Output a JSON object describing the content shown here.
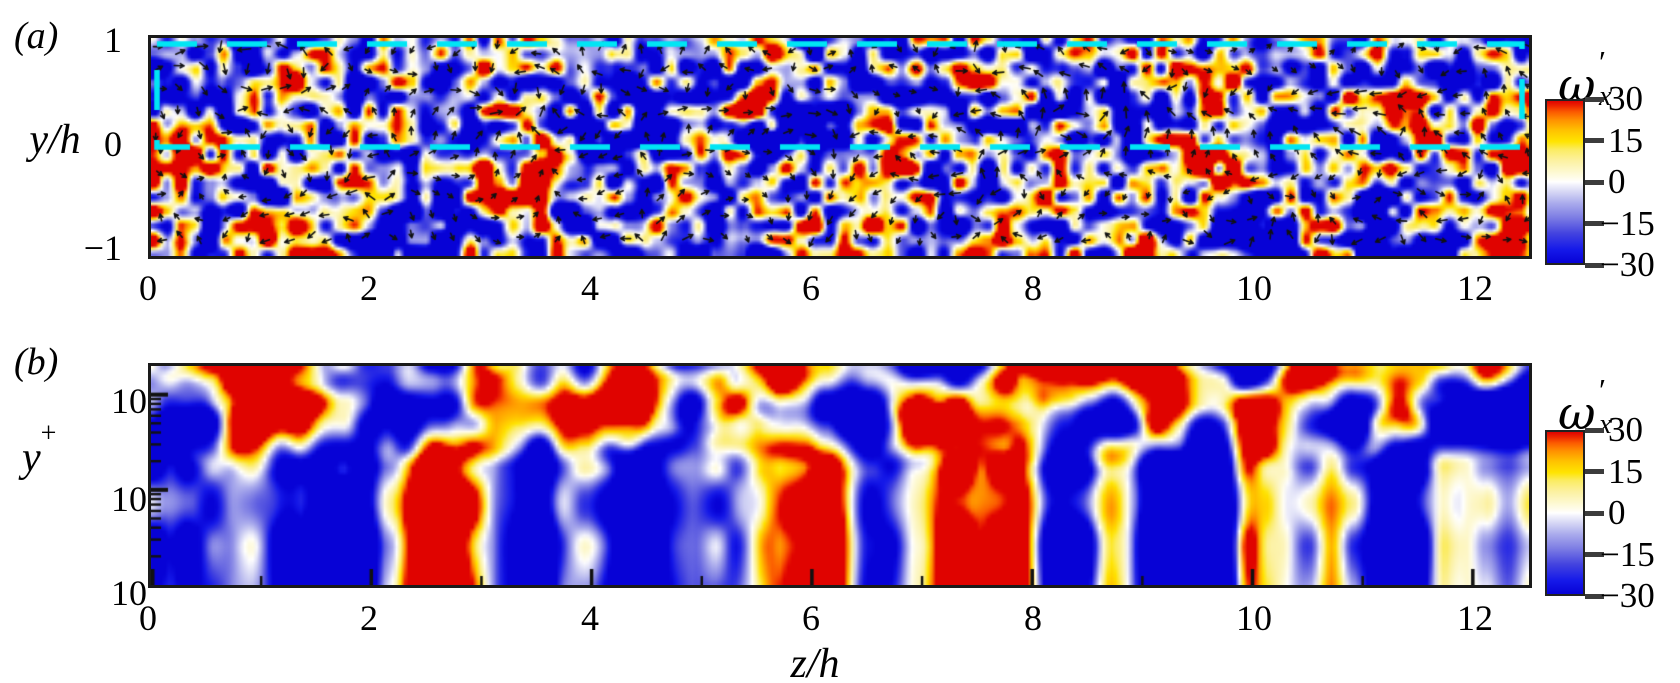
{
  "panels": {
    "a": {
      "tag": "(a)",
      "ylabel": "y/h",
      "y_ticks": [
        "1",
        "0",
        "−1"
      ],
      "x_ticks": [
        "0",
        "2",
        "4",
        "6",
        "8",
        "10",
        "12"
      ]
    },
    "b": {
      "tag": "(b)",
      "ylabel_base": "y",
      "ylabel_sup": "+",
      "y_ticks": [
        {
          "base": "10",
          "exp": "2"
        },
        {
          "base": "10",
          "exp": "1"
        },
        {
          "base": "10",
          "exp": "0"
        }
      ],
      "x_ticks": [
        "0",
        "2",
        "4",
        "6",
        "8",
        "10",
        "12"
      ]
    }
  },
  "xlabel": "z/h",
  "colorbar": {
    "omega": "ω",
    "prime": "′",
    "sub": "x",
    "ticks": [
      "30",
      "15",
      "0",
      "−15",
      "−30"
    ]
  },
  "colors": {
    "cyan_dash": "#00e6f4",
    "arrow": "#111111",
    "frame": "#1a1a1a",
    "colormap": [
      [
        -30,
        "#0702d6"
      ],
      [
        -25,
        "#1519e9"
      ],
      [
        -19,
        "#4343df"
      ],
      [
        -13,
        "#7e7ee4"
      ],
      [
        -8,
        "#a9aaec"
      ],
      [
        -4,
        "#d2d3f4"
      ],
      [
        -1,
        "#f2f2fc"
      ],
      [
        0,
        "#ffffff"
      ],
      [
        1,
        "#fffdf0"
      ],
      [
        4,
        "#fdf8cd"
      ],
      [
        8,
        "#fcf1a0"
      ],
      [
        12,
        "#fbec62"
      ],
      [
        15,
        "#ffe400"
      ],
      [
        19,
        "#ffc300"
      ],
      [
        23,
        "#ff9000"
      ],
      [
        26,
        "#fb5a00"
      ],
      [
        28,
        "#ef2800"
      ],
      [
        30,
        "#e00300"
      ]
    ]
  },
  "chart_data": [
    {
      "type": "heatmap",
      "panel": "(a)",
      "field": "instantaneous streamwise vorticity fluctuation ω′x in a cross-stream z–y plane, overlaid with in-plane velocity vector arrows",
      "xlabel": "z/h",
      "ylabel": "y/h",
      "x_range": [
        0,
        12.5
      ],
      "x_ticks": [
        0,
        2,
        4,
        6,
        8,
        10,
        12
      ],
      "y_range": [
        -1,
        1
      ],
      "y_ticks": [
        1,
        0,
        -1
      ],
      "colorbar": {
        "label": "ω′x",
        "ticks": [
          30,
          15,
          0,
          -15,
          -30
        ],
        "range": [
          -30,
          30
        ]
      },
      "colormap": "diverging blue–white–yellow–red",
      "annotations": [
        "cyan dashed rectangle outlining the upper half of the channel (0 ≤ y/h ≲ 0.95) across the full span",
        "dense black in-plane velocity vector arrows",
        "fine-grained mottled vorticity field with scattered saturated red/blue spots"
      ],
      "legend_position": "colorbar right"
    },
    {
      "type": "heatmap",
      "panel": "(b)",
      "field": "instantaneous streamwise vorticity fluctuation ω′x versus wall-normal distance in wall units (semilog view of near-wall region)",
      "xlabel": "z/h",
      "ylabel": "y+",
      "x_range": [
        0,
        12.5
      ],
      "x_ticks": [
        0,
        2,
        4,
        6,
        8,
        10,
        12
      ],
      "y_scale": "log",
      "y_range": [
        1,
        200
      ],
      "y_ticks": [
        "10^0",
        "10^1",
        "10^2"
      ],
      "colorbar": {
        "label": "ω′x",
        "ticks": [
          30,
          15,
          0,
          -15,
          -30
        ],
        "range": [
          -30,
          30
        ]
      },
      "colormap": "diverging blue–white–yellow–red",
      "annotations": [
        "smooth large-scale blobs in upper part, strong vertical streaks of saturated red/blue/yellow near the wall (low y+)"
      ],
      "legend_position": "colorbar right"
    }
  ]
}
